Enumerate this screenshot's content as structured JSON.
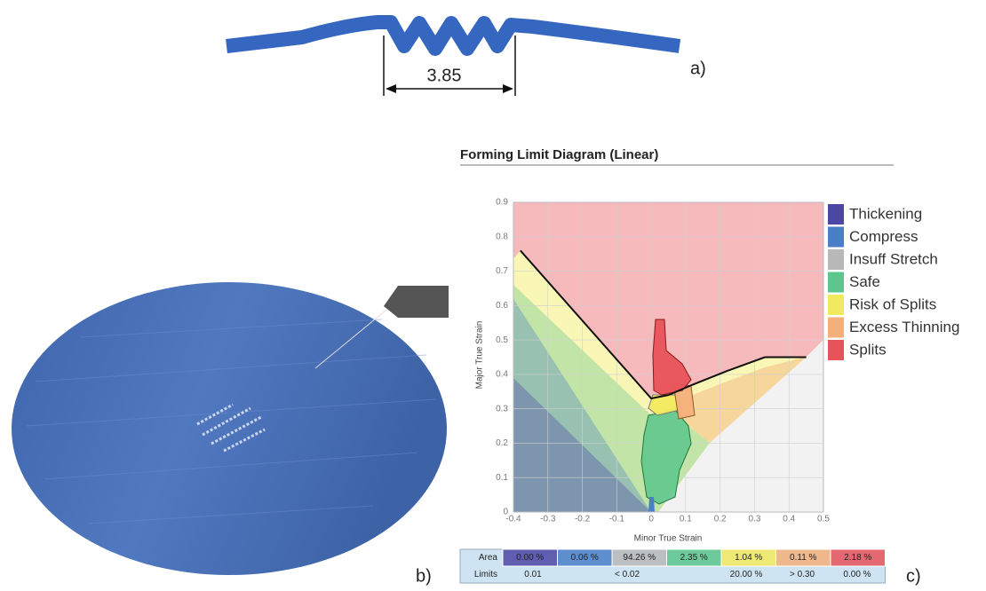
{
  "panel_a": {
    "dimension": "3.85",
    "label": "a)"
  },
  "panel_b": {
    "label": "b)"
  },
  "chart_data": {
    "type": "fld",
    "title": "Forming Limit Diagram (Linear)",
    "x_label": "Minor True Strain",
    "y_label": "Major True Strain",
    "xlim": [
      -0.4,
      0.5
    ],
    "ylim": [
      0,
      0.9
    ],
    "xticks": [
      -0.4,
      -0.3,
      -0.2,
      -0.1,
      0,
      0.1,
      0.2,
      0.3,
      0.4,
      0.5
    ],
    "yticks": [
      0,
      0.1,
      0.2,
      0.3,
      0.4,
      0.5,
      0.6,
      0.7,
      0.8,
      0.9
    ],
    "grid": true,
    "zones": [
      {
        "name": "Thickening",
        "color": "#4b47a3"
      },
      {
        "name": "Compress",
        "color": "#4a7fc8"
      },
      {
        "name": "Insuff Stretch",
        "color": "#b8b8b8"
      },
      {
        "name": "Safe",
        "color": "#5cc68c"
      },
      {
        "name": "Risk of Splits",
        "color": "#f2ea5e"
      },
      {
        "name": "Excess Thinning",
        "color": "#f4b07a"
      },
      {
        "name": "Splits",
        "color": "#e8525a"
      }
    ],
    "flc": {
      "color": "#111111",
      "x": [
        -0.38,
        0,
        0.05,
        0.12,
        0.22,
        0.33,
        0.45
      ],
      "values": [
        0.76,
        0.33,
        0.34,
        0.37,
        0.41,
        0.45,
        0.45
      ]
    },
    "table": {
      "area_label": "Area",
      "area": [
        "0.00 %",
        "0.06 %",
        "94.26 %",
        "2.35 %",
        "1.04 %",
        "0.11 %",
        "2.18 %"
      ],
      "limits_label": "Limits",
      "limits": [
        "0.01",
        "< 0.02",
        "20.00 %",
        "> 0.30",
        "0.00 %"
      ]
    },
    "label": "c)"
  }
}
